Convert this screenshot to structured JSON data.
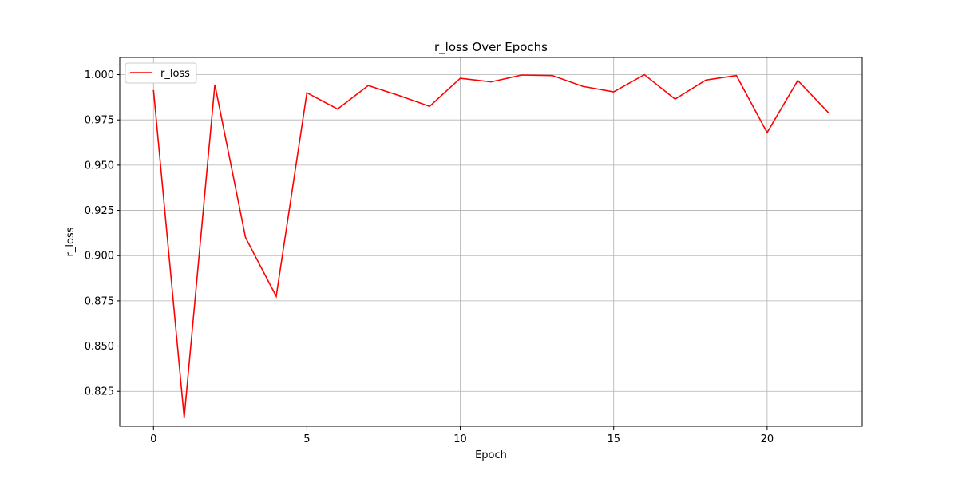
{
  "chart_data": {
    "type": "line",
    "title": "r_loss Over Epochs",
    "xlabel": "Epoch",
    "ylabel": "r_loss",
    "xlim": [
      -1.1,
      23.1
    ],
    "ylim": [
      0.8057,
      1.0095
    ],
    "xticks": [
      0,
      5,
      10,
      15,
      20
    ],
    "yticks": [
      0.825,
      0.85,
      0.875,
      0.9,
      0.925,
      0.95,
      0.975,
      1.0
    ],
    "ytick_labels": [
      "0.825",
      "0.850",
      "0.875",
      "0.900",
      "0.925",
      "0.950",
      "0.975",
      "1.000"
    ],
    "grid": true,
    "legend_position": "top-left",
    "color": "#ff0000",
    "series": [
      {
        "name": "r_loss",
        "x": [
          0,
          1,
          2,
          3,
          4,
          5,
          6,
          7,
          8,
          9,
          10,
          11,
          12,
          13,
          14,
          15,
          16,
          17,
          18,
          19,
          20,
          21,
          22
        ],
        "values": [
          0.9915,
          0.8105,
          0.9945,
          0.91,
          0.8775,
          0.99,
          0.981,
          0.994,
          0.9885,
          0.9825,
          0.998,
          0.996,
          0.9998,
          0.9995,
          0.9935,
          0.9905,
          1.0,
          0.9865,
          0.997,
          0.9995,
          0.968,
          0.9968,
          0.979
        ]
      }
    ]
  }
}
